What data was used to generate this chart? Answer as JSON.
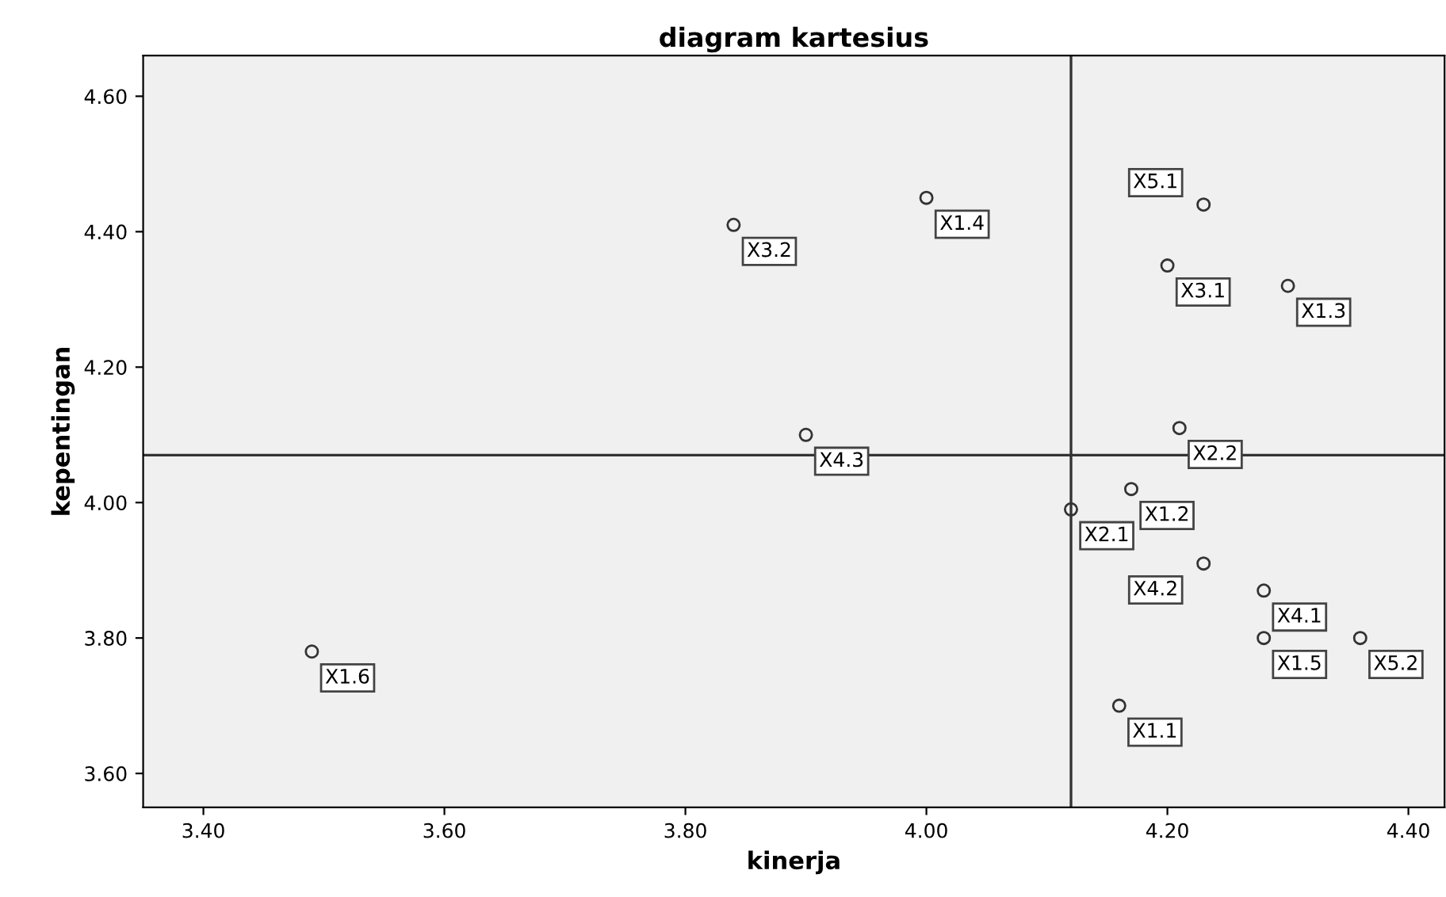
{
  "chart_data": {
    "type": "scatter",
    "title": "diagram kartesius",
    "xlabel": "kinerja",
    "ylabel": "kepentingan",
    "x": [
      3.49,
      3.84,
      4.0,
      3.9,
      4.23,
      4.2,
      4.3,
      4.21,
      4.17,
      4.12,
      4.23,
      4.28,
      4.28,
      4.36,
      4.16
    ],
    "series": [
      {
        "color": "#333333",
        "values": [
          3.78,
          4.41,
          4.45,
          4.1,
          4.44,
          4.35,
          4.32,
          4.11,
          4.02,
          3.99,
          3.91,
          3.87,
          3.8,
          3.8,
          3.7
        ]
      }
    ],
    "annotations": [
      {
        "text": "X1.6",
        "x": 3.49,
        "y": 3.78
      },
      {
        "text": "X3.2",
        "x": 3.84,
        "y": 4.41
      },
      {
        "text": "X1.4",
        "x": 4.0,
        "y": 4.45
      },
      {
        "text": "X4.3",
        "x": 3.9,
        "y": 4.1
      },
      {
        "text": "X5.1",
        "x": 4.23,
        "y": 4.44
      },
      {
        "text": "X3.1",
        "x": 4.2,
        "y": 4.35
      },
      {
        "text": "X1.3",
        "x": 4.3,
        "y": 4.32
      },
      {
        "text": "X2.2",
        "x": 4.21,
        "y": 4.11
      },
      {
        "text": "X1.2",
        "x": 4.17,
        "y": 4.02
      },
      {
        "text": "X2.1",
        "x": 4.12,
        "y": 3.99
      },
      {
        "text": "X4.2",
        "x": 4.23,
        "y": 3.91
      },
      {
        "text": "X4.1",
        "x": 4.28,
        "y": 3.87
      },
      {
        "text": "X1.5",
        "x": 4.28,
        "y": 3.8
      },
      {
        "text": "X5.2",
        "x": 4.36,
        "y": 3.8
      },
      {
        "text": "X1.1",
        "x": 4.16,
        "y": 3.7
      }
    ],
    "ref_lines": [
      {
        "axis": "x",
        "value": 4.12,
        "color": "#333333"
      },
      {
        "axis": "y",
        "value": 4.07,
        "color": "#333333"
      }
    ],
    "xlim": [
      3.35,
      4.43
    ],
    "ylim": [
      3.55,
      4.66
    ],
    "xticks": [
      {
        "value": 3.4,
        "label": "3.40"
      },
      {
        "value": 3.6,
        "label": "3.60"
      },
      {
        "value": 3.8,
        "label": "3.80"
      },
      {
        "value": 4.0,
        "label": "4.00"
      },
      {
        "value": 4.2,
        "label": "4.20"
      },
      {
        "value": 4.4,
        "label": "4.40"
      }
    ],
    "yticks": [
      {
        "value": 3.6,
        "label": "3.60"
      },
      {
        "value": 3.8,
        "label": "3.80"
      },
      {
        "value": 4.0,
        "label": "4.00"
      },
      {
        "value": 4.2,
        "label": "4.20"
      },
      {
        "value": 4.4,
        "label": "4.40"
      },
      {
        "value": 4.6,
        "label": "4.60"
      }
    ],
    "marker": "circle",
    "grid": false,
    "legend": false
  }
}
